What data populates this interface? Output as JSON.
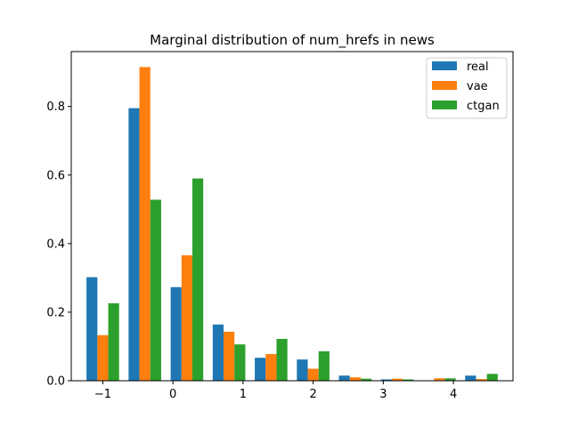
{
  "chart_data": {
    "type": "bar",
    "title": "Marginal distribution of num_hrefs in news",
    "xlabel": "",
    "ylabel": "",
    "xlim": [
      -1.45,
      4.85
    ],
    "ylim": [
      0,
      0.96
    ],
    "x_ticks": [
      -1,
      0,
      1,
      2,
      3,
      4
    ],
    "x_tick_labels": [
      "−1",
      "0",
      "1",
      "2",
      "3",
      "4"
    ],
    "y_ticks": [
      0,
      0.2,
      0.4,
      0.6,
      0.8
    ],
    "y_tick_labels": [
      "0.0",
      "0.2",
      "0.4",
      "0.6",
      "0.8"
    ],
    "bin_centers": [
      -1.0,
      -0.4,
      0.2,
      0.8,
      1.4,
      2.0,
      2.6,
      3.2,
      3.8,
      4.4
    ],
    "bar_width": 0.155,
    "series": [
      {
        "name": "real",
        "color": "#1f77b4",
        "values": [
          0.302,
          0.795,
          0.273,
          0.164,
          0.067,
          0.062,
          0.015,
          0.004,
          0.0,
          0.015
        ]
      },
      {
        "name": "vae",
        "color": "#ff7f0e",
        "values": [
          0.133,
          0.915,
          0.366,
          0.143,
          0.078,
          0.035,
          0.01,
          0.006,
          0.007,
          0.005
        ]
      },
      {
        "name": "ctgan",
        "color": "#2ca02c",
        "values": [
          0.226,
          0.528,
          0.59,
          0.106,
          0.122,
          0.086,
          0.006,
          0.004,
          0.007,
          0.02
        ]
      }
    ],
    "legend_position": "top-right",
    "grid": false
  }
}
